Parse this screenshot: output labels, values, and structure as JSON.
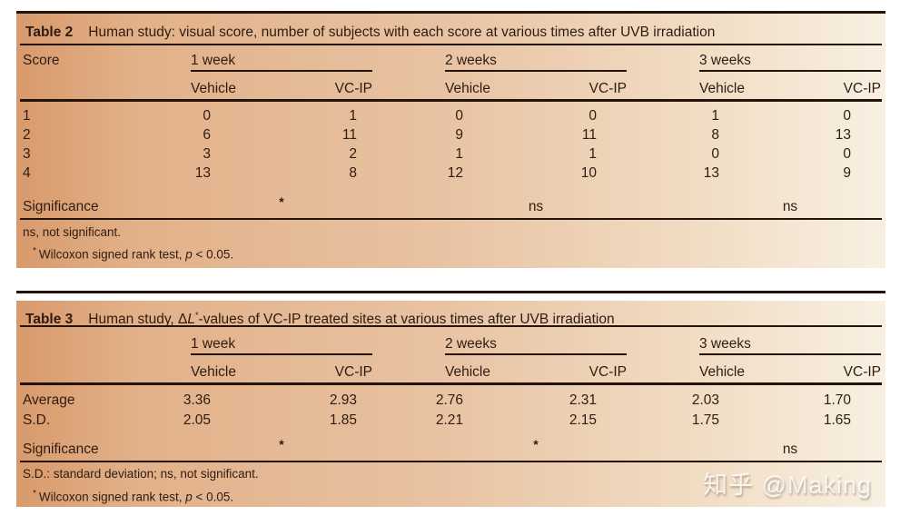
{
  "page": {
    "watermark": "知乎 @Making"
  },
  "colors": {
    "bg_left": "#d89a6c",
    "bg_mid": "#e8c2a2",
    "bg_right": "#f8f0e2",
    "rule": "#241309",
    "text": "#2f1c10"
  },
  "tables": [
    {
      "label": "Table 2",
      "title": "Human study: visual score, number of subjects with each score at various times after UVB irradiation",
      "row_header": "Score",
      "col_groups": [
        {
          "label": "1 week"
        },
        {
          "label": "2 weeks"
        },
        {
          "label": "3 weeks"
        }
      ],
      "sub_headers": [
        "Vehicle",
        "VC-IP"
      ],
      "rows": [
        {
          "label": "1",
          "values": [
            "0",
            "1",
            "0",
            "0",
            "1",
            "0"
          ]
        },
        {
          "label": "2",
          "values": [
            "6",
            "11",
            "9",
            "11",
            "8",
            "13"
          ]
        },
        {
          "label": "3",
          "values": [
            "3",
            "2",
            "1",
            "1",
            "0",
            "0"
          ]
        },
        {
          "label": "4",
          "values": [
            "13",
            "8",
            "12",
            "10",
            "13",
            "9"
          ]
        }
      ],
      "significance": {
        "label": "Significance",
        "marks": [
          "*",
          "ns",
          "ns"
        ]
      },
      "footnotes": {
        "line1": "ns, not significant.",
        "line2": {
          "marker": "*",
          "before": "Wilcoxon signed rank test, ",
          "italic": "p",
          "after": " < 0.05."
        }
      }
    },
    {
      "label": "Table 3",
      "title_parts": {
        "before": "Human study, Δ",
        "italic": "L",
        "sup": "*",
        "after": "-values of VC-IP treated sites at various times after UVB irradiation"
      },
      "row_header": "",
      "col_groups": [
        {
          "label": "1 week"
        },
        {
          "label": "2 weeks"
        },
        {
          "label": "3 weeks"
        }
      ],
      "sub_headers": [
        "Vehicle",
        "VC-IP"
      ],
      "rows": [
        {
          "label": "Average",
          "values": [
            "3.36",
            "2.93",
            "2.76",
            "2.31",
            "2.03",
            "1.70"
          ]
        },
        {
          "label": "S.D.",
          "values": [
            "2.05",
            "1.85",
            "2.21",
            "2.15",
            "1.75",
            "1.65"
          ]
        }
      ],
      "significance": {
        "label": "Significance",
        "marks": [
          "*",
          "*",
          "ns"
        ]
      },
      "footnotes": {
        "line1": "S.D.: standard deviation; ns, not significant.",
        "line2": {
          "marker": "*",
          "before": "Wilcoxon signed rank test, ",
          "italic": "p",
          "after": " < 0.05."
        }
      }
    }
  ]
}
